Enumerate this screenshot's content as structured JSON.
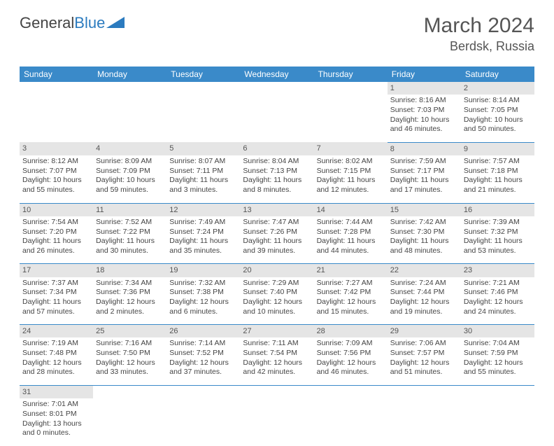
{
  "brand": {
    "part1": "General",
    "part2": "Blue"
  },
  "title": "March 2024",
  "location": "Berdsk, Russia",
  "colors": {
    "header_bg": "#3a8ac9",
    "header_text": "#ffffff",
    "daynum_bg": "#e5e5e5",
    "border": "#3a8ac9",
    "text": "#444444",
    "brand_blue": "#2b7bbf"
  },
  "weekdays": [
    "Sunday",
    "Monday",
    "Tuesday",
    "Wednesday",
    "Thursday",
    "Friday",
    "Saturday"
  ],
  "weeks": [
    {
      "nums": [
        "",
        "",
        "",
        "",
        "",
        "1",
        "2"
      ],
      "cells": [
        null,
        null,
        null,
        null,
        null,
        {
          "sr": "Sunrise: 8:16 AM",
          "ss": "Sunset: 7:03 PM",
          "d1": "Daylight: 10 hours",
          "d2": "and 46 minutes."
        },
        {
          "sr": "Sunrise: 8:14 AM",
          "ss": "Sunset: 7:05 PM",
          "d1": "Daylight: 10 hours",
          "d2": "and 50 minutes."
        }
      ]
    },
    {
      "nums": [
        "3",
        "4",
        "5",
        "6",
        "7",
        "8",
        "9"
      ],
      "cells": [
        {
          "sr": "Sunrise: 8:12 AM",
          "ss": "Sunset: 7:07 PM",
          "d1": "Daylight: 10 hours",
          "d2": "and 55 minutes."
        },
        {
          "sr": "Sunrise: 8:09 AM",
          "ss": "Sunset: 7:09 PM",
          "d1": "Daylight: 10 hours",
          "d2": "and 59 minutes."
        },
        {
          "sr": "Sunrise: 8:07 AM",
          "ss": "Sunset: 7:11 PM",
          "d1": "Daylight: 11 hours",
          "d2": "and 3 minutes."
        },
        {
          "sr": "Sunrise: 8:04 AM",
          "ss": "Sunset: 7:13 PM",
          "d1": "Daylight: 11 hours",
          "d2": "and 8 minutes."
        },
        {
          "sr": "Sunrise: 8:02 AM",
          "ss": "Sunset: 7:15 PM",
          "d1": "Daylight: 11 hours",
          "d2": "and 12 minutes."
        },
        {
          "sr": "Sunrise: 7:59 AM",
          "ss": "Sunset: 7:17 PM",
          "d1": "Daylight: 11 hours",
          "d2": "and 17 minutes."
        },
        {
          "sr": "Sunrise: 7:57 AM",
          "ss": "Sunset: 7:18 PM",
          "d1": "Daylight: 11 hours",
          "d2": "and 21 minutes."
        }
      ]
    },
    {
      "nums": [
        "10",
        "11",
        "12",
        "13",
        "14",
        "15",
        "16"
      ],
      "cells": [
        {
          "sr": "Sunrise: 7:54 AM",
          "ss": "Sunset: 7:20 PM",
          "d1": "Daylight: 11 hours",
          "d2": "and 26 minutes."
        },
        {
          "sr": "Sunrise: 7:52 AM",
          "ss": "Sunset: 7:22 PM",
          "d1": "Daylight: 11 hours",
          "d2": "and 30 minutes."
        },
        {
          "sr": "Sunrise: 7:49 AM",
          "ss": "Sunset: 7:24 PM",
          "d1": "Daylight: 11 hours",
          "d2": "and 35 minutes."
        },
        {
          "sr": "Sunrise: 7:47 AM",
          "ss": "Sunset: 7:26 PM",
          "d1": "Daylight: 11 hours",
          "d2": "and 39 minutes."
        },
        {
          "sr": "Sunrise: 7:44 AM",
          "ss": "Sunset: 7:28 PM",
          "d1": "Daylight: 11 hours",
          "d2": "and 44 minutes."
        },
        {
          "sr": "Sunrise: 7:42 AM",
          "ss": "Sunset: 7:30 PM",
          "d1": "Daylight: 11 hours",
          "d2": "and 48 minutes."
        },
        {
          "sr": "Sunrise: 7:39 AM",
          "ss": "Sunset: 7:32 PM",
          "d1": "Daylight: 11 hours",
          "d2": "and 53 minutes."
        }
      ]
    },
    {
      "nums": [
        "17",
        "18",
        "19",
        "20",
        "21",
        "22",
        "23"
      ],
      "cells": [
        {
          "sr": "Sunrise: 7:37 AM",
          "ss": "Sunset: 7:34 PM",
          "d1": "Daylight: 11 hours",
          "d2": "and 57 minutes."
        },
        {
          "sr": "Sunrise: 7:34 AM",
          "ss": "Sunset: 7:36 PM",
          "d1": "Daylight: 12 hours",
          "d2": "and 2 minutes."
        },
        {
          "sr": "Sunrise: 7:32 AM",
          "ss": "Sunset: 7:38 PM",
          "d1": "Daylight: 12 hours",
          "d2": "and 6 minutes."
        },
        {
          "sr": "Sunrise: 7:29 AM",
          "ss": "Sunset: 7:40 PM",
          "d1": "Daylight: 12 hours",
          "d2": "and 10 minutes."
        },
        {
          "sr": "Sunrise: 7:27 AM",
          "ss": "Sunset: 7:42 PM",
          "d1": "Daylight: 12 hours",
          "d2": "and 15 minutes."
        },
        {
          "sr": "Sunrise: 7:24 AM",
          "ss": "Sunset: 7:44 PM",
          "d1": "Daylight: 12 hours",
          "d2": "and 19 minutes."
        },
        {
          "sr": "Sunrise: 7:21 AM",
          "ss": "Sunset: 7:46 PM",
          "d1": "Daylight: 12 hours",
          "d2": "and 24 minutes."
        }
      ]
    },
    {
      "nums": [
        "24",
        "25",
        "26",
        "27",
        "28",
        "29",
        "30"
      ],
      "cells": [
        {
          "sr": "Sunrise: 7:19 AM",
          "ss": "Sunset: 7:48 PM",
          "d1": "Daylight: 12 hours",
          "d2": "and 28 minutes."
        },
        {
          "sr": "Sunrise: 7:16 AM",
          "ss": "Sunset: 7:50 PM",
          "d1": "Daylight: 12 hours",
          "d2": "and 33 minutes."
        },
        {
          "sr": "Sunrise: 7:14 AM",
          "ss": "Sunset: 7:52 PM",
          "d1": "Daylight: 12 hours",
          "d2": "and 37 minutes."
        },
        {
          "sr": "Sunrise: 7:11 AM",
          "ss": "Sunset: 7:54 PM",
          "d1": "Daylight: 12 hours",
          "d2": "and 42 minutes."
        },
        {
          "sr": "Sunrise: 7:09 AM",
          "ss": "Sunset: 7:56 PM",
          "d1": "Daylight: 12 hours",
          "d2": "and 46 minutes."
        },
        {
          "sr": "Sunrise: 7:06 AM",
          "ss": "Sunset: 7:57 PM",
          "d1": "Daylight: 12 hours",
          "d2": "and 51 minutes."
        },
        {
          "sr": "Sunrise: 7:04 AM",
          "ss": "Sunset: 7:59 PM",
          "d1": "Daylight: 12 hours",
          "d2": "and 55 minutes."
        }
      ]
    },
    {
      "nums": [
        "31",
        "",
        "",
        "",
        "",
        "",
        ""
      ],
      "cells": [
        {
          "sr": "Sunrise: 7:01 AM",
          "ss": "Sunset: 8:01 PM",
          "d1": "Daylight: 13 hours",
          "d2": "and 0 minutes."
        },
        null,
        null,
        null,
        null,
        null,
        null
      ]
    }
  ]
}
